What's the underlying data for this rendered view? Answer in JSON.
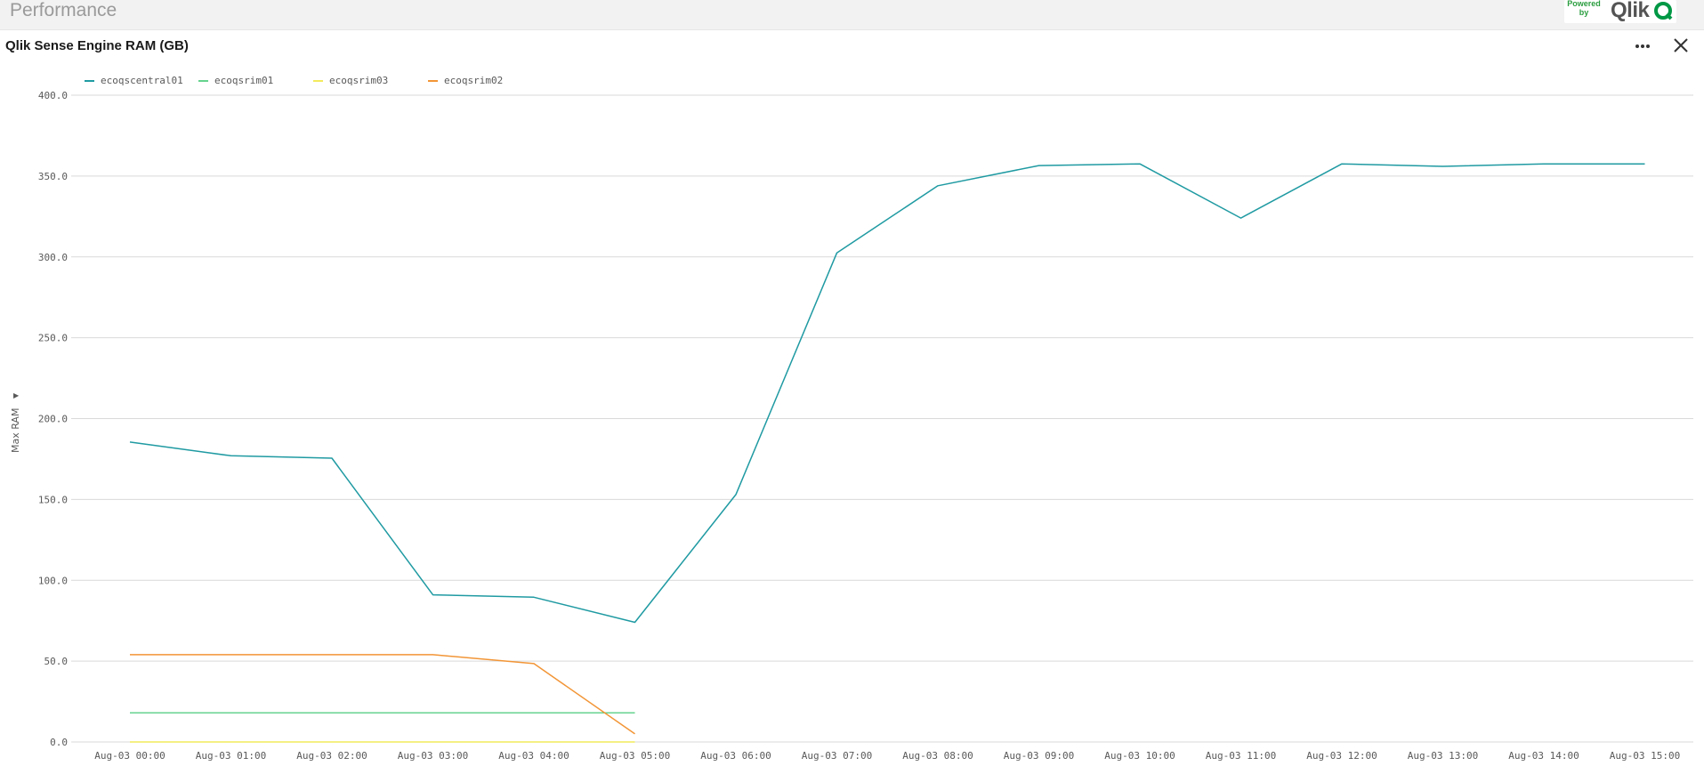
{
  "app": {
    "title": "Performance"
  },
  "brand": {
    "powered_by": "Powered by",
    "name": "Qlik"
  },
  "panel": {
    "title": "Qlik Sense Engine RAM (GB)",
    "menu_icon": "more-horizontal-icon",
    "close_icon": "close-icon"
  },
  "colors": {
    "ecoqscentral01": "#1f9aa2",
    "ecoqsrim01": "#66d38f",
    "ecoqsrim03": "#f2ea5c",
    "ecoqsrim02": "#f29536",
    "grid": "#d9d9d9"
  },
  "chart_data": {
    "type": "line",
    "title": "Qlik Sense Engine RAM (GB)",
    "xlabel": "",
    "ylabel": "Max RAM",
    "ylim": [
      0,
      400
    ],
    "yticks": [
      "0.0",
      "50.0",
      "100.0",
      "150.0",
      "200.0",
      "250.0",
      "300.0",
      "350.0",
      "400.0"
    ],
    "grid": true,
    "legend_position": "top-left",
    "categories": [
      "Aug-03 00:00",
      "Aug-03 01:00",
      "Aug-03 02:00",
      "Aug-03 03:00",
      "Aug-03 04:00",
      "Aug-03 05:00",
      "Aug-03 06:00",
      "Aug-03 07:00",
      "Aug-03 08:00",
      "Aug-03 09:00",
      "Aug-03 10:00",
      "Aug-03 11:00",
      "Aug-03 12:00",
      "Aug-03 13:00",
      "Aug-03 14:00",
      "Aug-03 15:00"
    ],
    "series": [
      {
        "name": "ecoqscentral01",
        "values": [
          185.5,
          177,
          175.5,
          91,
          89.5,
          74,
          153,
          302.5,
          344,
          356.5,
          357.5,
          324,
          357.5,
          356,
          357.5,
          357.5
        ]
      },
      {
        "name": "ecoqsrim01",
        "values": [
          18,
          18,
          18,
          18,
          18,
          18,
          null,
          null,
          null,
          null,
          null,
          null,
          null,
          null,
          null,
          null
        ]
      },
      {
        "name": "ecoqsrim03",
        "values": [
          0,
          0,
          0,
          0,
          0,
          0,
          null,
          null,
          null,
          null,
          null,
          null,
          null,
          null,
          null,
          null
        ]
      },
      {
        "name": "ecoqsrim02",
        "values": [
          54,
          54,
          54,
          54,
          48.5,
          5,
          null,
          null,
          null,
          null,
          null,
          null,
          null,
          null,
          null,
          null
        ]
      }
    ]
  }
}
